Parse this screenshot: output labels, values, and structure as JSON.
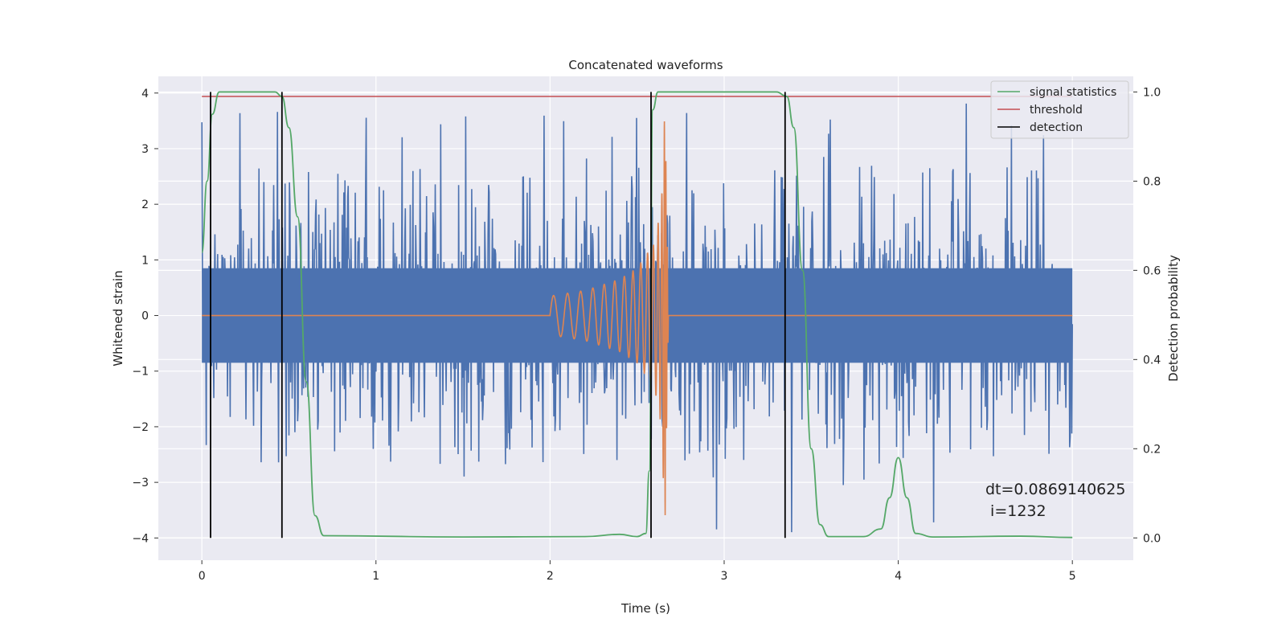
{
  "chart_data": {
    "type": "line",
    "title": "Concatenated waveforms",
    "xlabel": "Time (s)",
    "ylabel": "Whitened strain",
    "y2label": "Detection probability",
    "xlim": [
      -0.25,
      5.35
    ],
    "ylim": [
      -4.4,
      4.3
    ],
    "y2lim": [
      -0.05,
      1.035
    ],
    "xticks": [
      0,
      1,
      2,
      3,
      4,
      5
    ],
    "yticks": [
      -4,
      -3,
      -2,
      -1,
      0,
      1,
      2,
      3,
      4
    ],
    "y2ticks": [
      0.0,
      0.2,
      0.4,
      0.6,
      0.8,
      1.0
    ],
    "xtick_labels": [
      "0",
      "1",
      "2",
      "3",
      "4",
      "5"
    ],
    "ytick_labels": [
      "−4",
      "−3",
      "−2",
      "−1",
      "0",
      "1",
      "2",
      "3",
      "4"
    ],
    "y2tick_labels": [
      "0.0",
      "0.2",
      "0.4",
      "0.6",
      "0.8",
      "1.0"
    ],
    "grid": true,
    "legend_position": "top-right",
    "series": [
      {
        "name": "",
        "axis": "left",
        "color": "#4c72b0",
        "kind": "noise",
        "x_range": [
          0,
          5
        ],
        "core_amplitude": 0.85,
        "peak_amplitude": 3.9
      },
      {
        "name": "",
        "axis": "left",
        "color": "#dd8452",
        "kind": "chirp",
        "x_range": [
          0,
          5
        ],
        "chirp_start": 2.0,
        "merger": 2.66,
        "x": [
          2.0,
          2.2,
          2.4,
          2.5,
          2.6,
          2.64,
          2.66,
          2.68
        ],
        "envelope": [
          0.35,
          0.45,
          0.65,
          0.85,
          1.3,
          2.0,
          3.8,
          0.05
        ]
      },
      {
        "name": "signal statistics",
        "axis": "right",
        "color": "#55a868",
        "x": [
          0.0,
          0.03,
          0.06,
          0.1,
          0.2,
          0.42,
          0.46,
          0.5,
          0.55,
          0.6,
          0.65,
          0.7,
          1.5,
          2.2,
          2.4,
          2.5,
          2.55,
          2.57,
          2.59,
          2.62,
          2.7,
          3.3,
          3.36,
          3.4,
          3.45,
          3.5,
          3.55,
          3.6,
          3.8,
          3.9,
          3.95,
          4.0,
          4.05,
          4.1,
          4.2,
          4.7,
          5.0
        ],
        "values": [
          0.64,
          0.8,
          0.95,
          1.0,
          1.0,
          1.0,
          0.99,
          0.92,
          0.72,
          0.35,
          0.05,
          0.005,
          0.002,
          0.003,
          0.008,
          0.003,
          0.01,
          0.15,
          0.96,
          1.0,
          1.0,
          1.0,
          0.99,
          0.92,
          0.6,
          0.2,
          0.03,
          0.003,
          0.003,
          0.02,
          0.09,
          0.18,
          0.09,
          0.01,
          0.002,
          0.004,
          0.001
        ]
      },
      {
        "name": "threshold",
        "axis": "right",
        "color": "#c44e52",
        "x": [
          0,
          5
        ],
        "values": [
          0.99,
          0.99
        ]
      }
    ],
    "detections": {
      "name": "detection",
      "color": "#000000",
      "x": [
        0.05,
        0.46,
        2.58,
        3.35
      ],
      "range": [
        0.0,
        1.0
      ]
    },
    "legend": [
      "signal statistics",
      "threshold",
      "detection"
    ],
    "annotation": [
      "dt=0.0869140625",
      " i=1232"
    ]
  }
}
